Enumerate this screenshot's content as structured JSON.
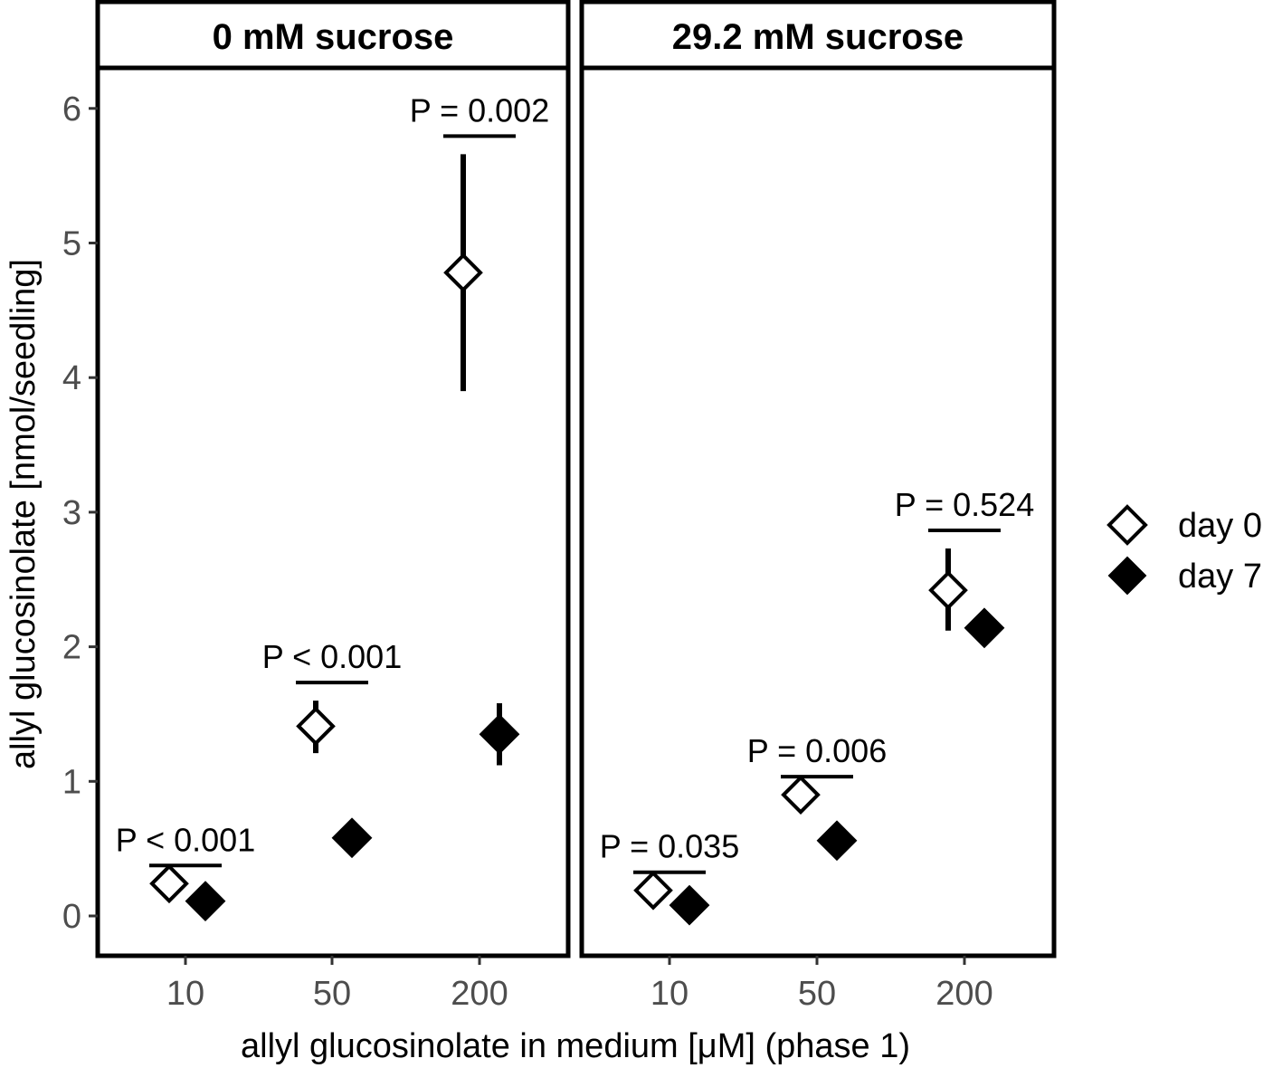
{
  "chart_data": {
    "type": "scatter",
    "xlabel": "allyl glucosinolate in medium [μM] (phase 1)",
    "ylabel": "allyl glucosinolate [nmol/seedling]",
    "categories": [
      "10",
      "50",
      "200"
    ],
    "ylim": [
      -0.3,
      6.3
    ],
    "yticks": [
      "0",
      "1",
      "2",
      "3",
      "4",
      "5",
      "6"
    ],
    "grid": false,
    "legend_position": "right",
    "legend": [
      {
        "label": "day 0",
        "marker": "open-diamond"
      },
      {
        "label": "day 7",
        "marker": "filled-diamond"
      }
    ],
    "panels": [
      {
        "title": "0 mM sucrose",
        "series": [
          {
            "name": "day 0",
            "values": [
              0.24,
              1.41,
              4.78
            ],
            "err_low": [
              0.24,
              1.21,
              3.9
            ],
            "err_high": [
              0.24,
              1.6,
              5.66
            ]
          },
          {
            "name": "day 7",
            "values": [
              0.11,
              0.58,
              1.35
            ],
            "err_low": [
              0.11,
              0.58,
              1.12
            ],
            "err_high": [
              0.11,
              0.58,
              1.58
            ]
          }
        ],
        "p_values": [
          "P < 0.001",
          "P < 0.001",
          "P = 0.002"
        ]
      },
      {
        "title": "29.2 mM sucrose",
        "series": [
          {
            "name": "day 0",
            "values": [
              0.19,
              0.9,
              2.42
            ],
            "err_low": [
              0.19,
              0.9,
              2.12
            ],
            "err_high": [
              0.19,
              0.9,
              2.73
            ]
          },
          {
            "name": "day 7",
            "values": [
              0.08,
              0.56,
              2.14
            ],
            "err_low": [
              0.08,
              0.56,
              2.14
            ],
            "err_high": [
              0.08,
              0.56,
              2.14
            ]
          }
        ],
        "p_values": [
          "P = 0.035",
          "P = 0.006",
          "P = 0.524"
        ]
      }
    ]
  }
}
